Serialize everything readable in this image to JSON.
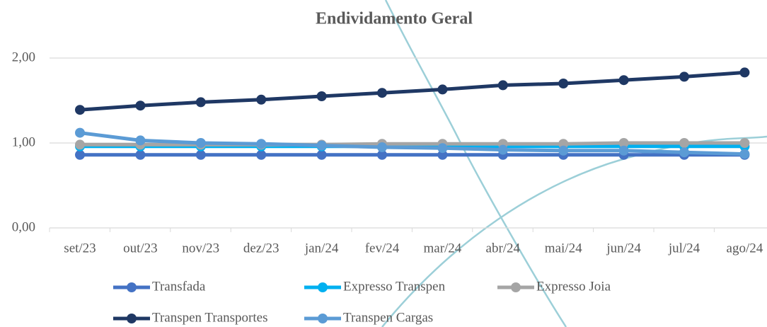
{
  "chart_data": {
    "type": "line",
    "title": "Endividamento Geral",
    "categories": [
      "set/23",
      "out/23",
      "nov/23",
      "dez/23",
      "jan/24",
      "fev/24",
      "mar/24",
      "abr/24",
      "mai/24",
      "jun/24",
      "jul/24",
      "ago/24"
    ],
    "ylim": [
      0,
      2
    ],
    "yticks": [
      {
        "value": 0,
        "label": "0,00"
      },
      {
        "value": 1,
        "label": "1,00"
      },
      {
        "value": 2,
        "label": "2,00"
      }
    ],
    "grid": true,
    "series": [
      {
        "name": "Transfada",
        "color": "#4472c4",
        "values": [
          0.86,
          0.86,
          0.86,
          0.86,
          0.86,
          0.86,
          0.86,
          0.86,
          0.86,
          0.86,
          0.86,
          0.86
        ]
      },
      {
        "name": "Expresso Transpen",
        "color": "#00b0f0",
        "values": [
          0.96,
          0.96,
          0.96,
          0.96,
          0.96,
          0.96,
          0.96,
          0.96,
          0.96,
          0.96,
          0.96,
          0.96
        ]
      },
      {
        "name": "Expresso Joia",
        "color": "#a5a5a5",
        "values": [
          0.98,
          0.98,
          0.98,
          0.98,
          0.98,
          0.99,
          0.99,
          0.99,
          0.99,
          1.0,
          1.0,
          1.0
        ]
      },
      {
        "name": "Transpen Transportes",
        "color": "#1f3864",
        "values": [
          1.39,
          1.44,
          1.48,
          1.51,
          1.55,
          1.59,
          1.63,
          1.68,
          1.7,
          1.74,
          1.78,
          1.83
        ]
      },
      {
        "name": "Transpen Cargas",
        "color": "#5b9bd5",
        "values": [
          1.12,
          1.03,
          1.0,
          0.99,
          0.97,
          0.95,
          0.94,
          0.92,
          0.91,
          0.91,
          0.89,
          0.87
        ]
      }
    ]
  }
}
